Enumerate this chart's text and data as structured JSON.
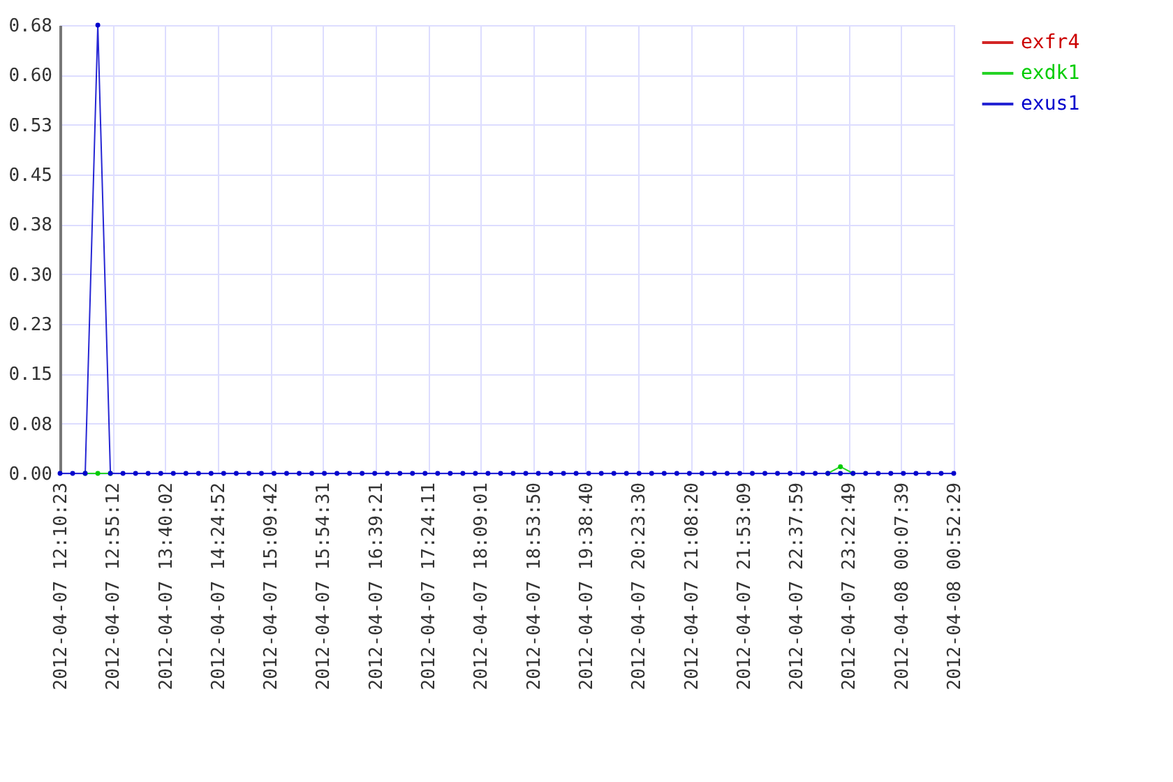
{
  "chart_data": {
    "type": "line",
    "x": [
      "2012-04-07T12:10:23",
      "2012-04-07T12:21:07",
      "2012-04-07T12:31:51",
      "2012-04-07T12:42:35",
      "2012-04-07T12:53:19",
      "2012-04-07T13:04:03",
      "2012-04-07T13:14:47",
      "2012-04-07T13:25:31",
      "2012-04-07T13:36:15",
      "2012-04-07T13:46:59",
      "2012-04-07T13:57:43",
      "2012-04-07T14:08:27",
      "2012-04-07T14:19:11",
      "2012-04-07T14:29:55",
      "2012-04-07T14:40:39",
      "2012-04-07T14:51:23",
      "2012-04-07T15:02:07",
      "2012-04-07T15:12:51",
      "2012-04-07T15:23:35",
      "2012-04-07T15:34:19",
      "2012-04-07T15:45:03",
      "2012-04-07T15:55:47",
      "2012-04-07T16:06:31",
      "2012-04-07T16:17:15",
      "2012-04-07T16:27:59",
      "2012-04-07T16:38:43",
      "2012-04-07T16:49:27",
      "2012-04-07T17:00:11",
      "2012-04-07T17:10:55",
      "2012-04-07T17:21:39",
      "2012-04-07T17:32:23",
      "2012-04-07T17:43:07",
      "2012-04-07T17:53:51",
      "2012-04-07T18:04:35",
      "2012-04-07T18:15:19",
      "2012-04-07T18:26:03",
      "2012-04-07T18:36:47",
      "2012-04-07T18:47:31",
      "2012-04-07T18:58:15",
      "2012-04-07T19:08:59",
      "2012-04-07T19:19:43",
      "2012-04-07T19:30:27",
      "2012-04-07T19:41:11",
      "2012-04-07T19:51:55",
      "2012-04-07T20:02:39",
      "2012-04-07T20:13:23",
      "2012-04-07T20:24:07",
      "2012-04-07T20:34:51",
      "2012-04-07T20:45:35",
      "2012-04-07T20:56:19",
      "2012-04-07T21:07:03",
      "2012-04-07T21:17:47",
      "2012-04-07T21:28:31",
      "2012-04-07T21:39:15",
      "2012-04-07T21:49:59",
      "2012-04-07T22:00:43",
      "2012-04-07T22:11:27",
      "2012-04-07T22:22:11",
      "2012-04-07T22:32:55",
      "2012-04-07T22:43:39",
      "2012-04-07T22:54:23",
      "2012-04-07T23:05:07",
      "2012-04-07T23:15:51",
      "2012-04-07T23:26:35",
      "2012-04-07T23:37:19",
      "2012-04-07T23:48:03",
      "2012-04-07T23:58:47",
      "2012-04-08T00:09:31",
      "2012-04-08T00:20:15",
      "2012-04-08T00:30:59",
      "2012-04-08T00:41:43",
      "2012-04-08T00:52:29"
    ],
    "series": [
      {
        "name": "exfr4",
        "color": "#cc0000",
        "values": [
          null,
          null,
          null,
          null,
          null,
          null,
          null,
          null,
          null,
          null,
          null,
          null,
          null,
          null,
          null,
          null,
          null,
          null,
          null,
          null,
          null,
          null,
          null,
          null,
          null,
          null,
          null,
          null,
          null,
          null,
          null,
          null,
          null,
          null,
          null,
          null,
          null,
          null,
          null,
          null,
          null,
          null,
          null,
          null,
          null,
          null,
          null,
          null,
          null,
          null,
          null,
          null,
          null,
          null,
          null,
          null,
          null,
          null,
          null,
          null,
          null,
          null,
          null,
          null,
          null,
          null,
          null,
          null,
          null,
          null,
          null,
          null
        ]
      },
      {
        "name": "exdk1",
        "color": "#00cc00",
        "values": [
          null,
          null,
          0,
          0,
          0,
          null,
          null,
          null,
          null,
          null,
          null,
          null,
          null,
          null,
          null,
          null,
          null,
          null,
          null,
          null,
          null,
          null,
          null,
          null,
          null,
          null,
          null,
          null,
          null,
          null,
          null,
          null,
          null,
          null,
          null,
          null,
          null,
          null,
          null,
          null,
          null,
          null,
          null,
          null,
          null,
          null,
          null,
          null,
          null,
          null,
          null,
          null,
          null,
          null,
          null,
          null,
          null,
          null,
          null,
          null,
          null,
          0,
          0.01,
          0,
          null,
          null,
          null,
          null,
          null,
          null,
          null,
          null
        ]
      },
      {
        "name": "exus1",
        "color": "#0000cc",
        "values": [
          0,
          0,
          0,
          0.675,
          0,
          0,
          0,
          0,
          0,
          0,
          0,
          0,
          0,
          0,
          0,
          0,
          0,
          0,
          0,
          0,
          0,
          0,
          0,
          0,
          0,
          0,
          0,
          0,
          0,
          0,
          0,
          0,
          0,
          0,
          0,
          0,
          0,
          0,
          0,
          0,
          0,
          0,
          0,
          0,
          0,
          0,
          0,
          0,
          0,
          0,
          0,
          0,
          0,
          0,
          0,
          0,
          0,
          0,
          0,
          0,
          0,
          0,
          0,
          0,
          0,
          0,
          0,
          0,
          0,
          0,
          0,
          0
        ]
      }
    ],
    "xlim": [
      "2012-04-07T12:10:23",
      "2012-04-08T00:52:29"
    ],
    "xticks": [
      {
        "value": "2012-04-07T12:10:23",
        "label": "2012-04-07 12:10:23"
      },
      {
        "value": "2012-04-07T12:55:12",
        "label": "2012-04-07 12:55:12"
      },
      {
        "value": "2012-04-07T13:40:02",
        "label": "2012-04-07 13:40:02"
      },
      {
        "value": "2012-04-07T14:24:52",
        "label": "2012-04-07 14:24:52"
      },
      {
        "value": "2012-04-07T15:09:42",
        "label": "2012-04-07 15:09:42"
      },
      {
        "value": "2012-04-07T15:54:31",
        "label": "2012-04-07 15:54:31"
      },
      {
        "value": "2012-04-07T16:39:21",
        "label": "2012-04-07 16:39:21"
      },
      {
        "value": "2012-04-07T17:24:11",
        "label": "2012-04-07 17:24:11"
      },
      {
        "value": "2012-04-07T18:09:01",
        "label": "2012-04-07 18:09:01"
      },
      {
        "value": "2012-04-07T18:53:50",
        "label": "2012-04-07 18:53:50"
      },
      {
        "value": "2012-04-07T19:38:40",
        "label": "2012-04-07 19:38:40"
      },
      {
        "value": "2012-04-07T20:23:30",
        "label": "2012-04-07 20:23:30"
      },
      {
        "value": "2012-04-07T21:08:20",
        "label": "2012-04-07 21:08:20"
      },
      {
        "value": "2012-04-07T21:53:09",
        "label": "2012-04-07 21:53:09"
      },
      {
        "value": "2012-04-07T22:37:59",
        "label": "2012-04-07 22:37:59"
      },
      {
        "value": "2012-04-07T23:22:49",
        "label": "2012-04-07 23:22:49"
      },
      {
        "value": "2012-04-08T00:07:39",
        "label": "2012-04-08 00:07:39"
      },
      {
        "value": "2012-04-08T00:52:29",
        "label": "2012-04-08 00:52:29"
      }
    ],
    "ylim": [
      0,
      0.675
    ],
    "yticks": [
      {
        "value": 0,
        "label": "0.00"
      },
      {
        "value": 0.075,
        "label": "0.08"
      },
      0.15,
      {
        "value": 0.225,
        "label": "0.23"
      },
      {
        "value": 0.3,
        "label": "0.30"
      },
      {
        "value": 0.375,
        "label": "0.38"
      },
      {
        "value": 0.45,
        "label": "0.45"
      },
      {
        "value": 0.525,
        "label": "0.53"
      },
      {
        "value": 0.6,
        "label": "0.60"
      },
      {
        "value": 0.675,
        "label": "0.68"
      }
    ],
    "grid": true,
    "legend": "top right",
    "marker": "circle",
    "line_style": "solid"
  }
}
